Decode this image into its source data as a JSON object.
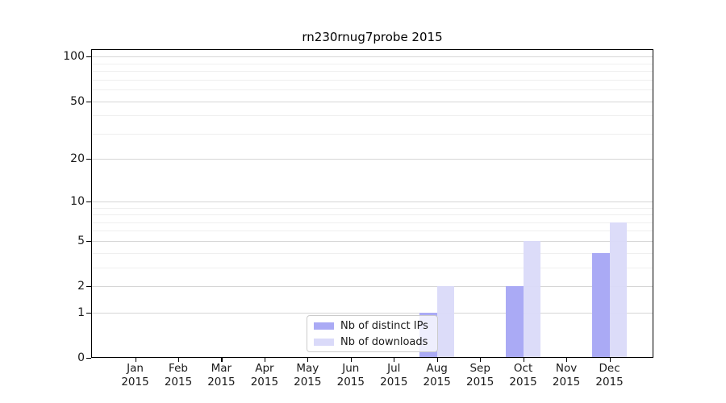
{
  "title": "rn230rnug7probe 2015",
  "chart_data": {
    "type": "bar",
    "title": "rn230rnug7probe 2015",
    "categories": [
      {
        "month": "Jan",
        "year": "2015"
      },
      {
        "month": "Feb",
        "year": "2015"
      },
      {
        "month": "Mar",
        "year": "2015"
      },
      {
        "month": "Apr",
        "year": "2015"
      },
      {
        "month": "May",
        "year": "2015"
      },
      {
        "month": "Jun",
        "year": "2015"
      },
      {
        "month": "Jul",
        "year": "2015"
      },
      {
        "month": "Aug",
        "year": "2015"
      },
      {
        "month": "Sep",
        "year": "2015"
      },
      {
        "month": "Oct",
        "year": "2015"
      },
      {
        "month": "Nov",
        "year": "2015"
      },
      {
        "month": "Dec",
        "year": "2015"
      }
    ],
    "series": [
      {
        "name": "Nb of distinct IPs",
        "color": "#aaaaf5",
        "values": [
          0,
          0,
          0,
          0,
          0,
          0,
          0,
          1,
          0,
          2,
          0,
          4
        ]
      },
      {
        "name": "Nb of downloads",
        "color": "#dadaf9",
        "values": [
          0,
          0,
          0,
          0,
          0,
          0,
          0,
          2,
          0,
          5,
          0,
          7
        ]
      }
    ],
    "y_scale": "log10(1+x)",
    "y_ticks": [
      0,
      1,
      2,
      5,
      10,
      20,
      50,
      100
    ],
    "y_minor_ticks": [
      3,
      4,
      6,
      7,
      8,
      9,
      30,
      40,
      60,
      70,
      80,
      90
    ],
    "ylim": [
      0,
      112
    ],
    "xlabel": "",
    "ylabel": "",
    "grid": "horizontal",
    "legend_position": "bottom-center-inside",
    "background_color": "#ffffff",
    "axis_color": "#000000"
  }
}
